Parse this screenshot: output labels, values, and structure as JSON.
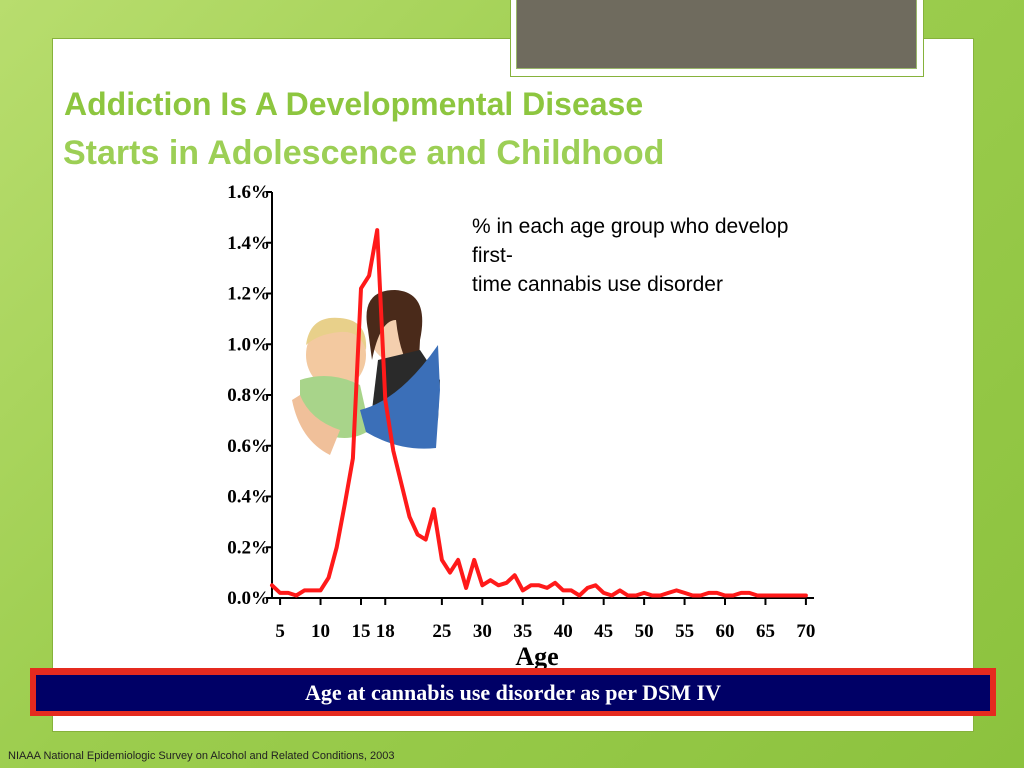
{
  "slide": {
    "title": "Addiction Is A Developmental Disease",
    "subtitle": "Starts in Adolescence and Childhood",
    "annotation_lines": [
      "% in each age group who develop",
      "first-",
      "time cannabis use disorder"
    ],
    "caption": "Age at cannabis use disorder as per DSM IV",
    "source": "NIAAA National Epidemiologic Survey on Alcohol and Related Conditions, 2003",
    "colors": {
      "title": "#8dc63f",
      "line": "#ff1a1a",
      "caption_bg": "#000066",
      "caption_border": "#e52a1f"
    },
    "photo": "two-girls-photo"
  },
  "chart_data": {
    "type": "line",
    "xlabel": "Age",
    "ylabel": "",
    "ylim": [
      0,
      1.6
    ],
    "xlim": [
      4,
      71
    ],
    "y_ticks": [
      "0.0%",
      "0.2%",
      "0.4%",
      "0.6%",
      "0.8%",
      "1.0%",
      "1.2%",
      "1.4%",
      "1.6%"
    ],
    "y_tick_values": [
      0,
      0.2,
      0.4,
      0.6,
      0.8,
      1.0,
      1.2,
      1.4,
      1.6
    ],
    "x_ticks": [
      "5",
      "10",
      "15",
      "18",
      "25",
      "30",
      "35",
      "40",
      "45",
      "50",
      "55",
      "60",
      "65",
      "70"
    ],
    "x_tick_values": [
      5,
      10,
      15,
      18,
      25,
      30,
      35,
      40,
      45,
      50,
      55,
      60,
      65,
      70
    ],
    "grid": false,
    "series": [
      {
        "x": [
          4,
          5,
          6,
          7,
          8,
          9,
          10,
          11,
          12,
          13,
          14,
          15,
          16,
          17,
          18,
          19,
          20,
          21,
          22,
          23,
          24,
          25,
          26,
          27,
          28,
          29,
          30,
          31,
          32,
          33,
          34,
          35,
          36,
          37,
          38,
          39,
          40,
          41,
          42,
          43,
          44,
          45,
          46,
          47,
          48,
          49,
          50,
          51,
          52,
          53,
          54,
          55,
          56,
          57,
          58,
          59,
          60,
          61,
          62,
          63,
          64,
          65,
          66,
          67,
          68,
          69,
          70
        ],
        "y": [
          0.05,
          0.02,
          0.02,
          0.01,
          0.03,
          0.03,
          0.03,
          0.08,
          0.2,
          0.37,
          0.55,
          1.22,
          1.27,
          1.45,
          0.78,
          0.58,
          0.45,
          0.32,
          0.25,
          0.23,
          0.35,
          0.15,
          0.1,
          0.15,
          0.04,
          0.15,
          0.05,
          0.07,
          0.05,
          0.06,
          0.09,
          0.03,
          0.05,
          0.05,
          0.04,
          0.06,
          0.03,
          0.03,
          0.01,
          0.04,
          0.05,
          0.02,
          0.01,
          0.03,
          0.01,
          0.01,
          0.02,
          0.01,
          0.01,
          0.02,
          0.03,
          0.02,
          0.01,
          0.01,
          0.02,
          0.02,
          0.01,
          0.01,
          0.02,
          0.02,
          0.01,
          0.01,
          0.01,
          0.01,
          0.01,
          0.01,
          0.01
        ]
      }
    ]
  }
}
